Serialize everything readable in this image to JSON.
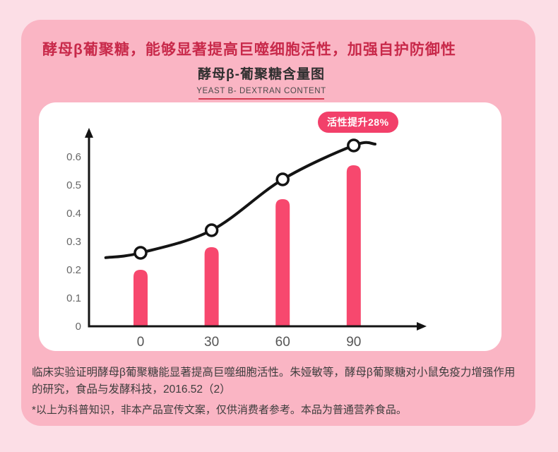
{
  "page": {
    "heading": "酵母β葡聚糖，能够显著提高巨噬细胞活性，加强自护防御性",
    "chart_title": "酵母β-葡聚糖含量图",
    "chart_subtitle": "YEAST B- DEXTRAN CONTENT",
    "footnote_line1": "临床实验证明酵母β葡聚糖能显著提高巨噬细胞活性。朱娅敏等，酵母β葡聚糖对小鼠免疫力增强作用",
    "footnote_line2": "的研究，食品与发酵科技，2016.52（2）",
    "disclaimer": "*以上为科普知识，非本产品宣传文案，仅供消费者参考。本品为普通营养食品。"
  },
  "colors": {
    "outer_background": "#fcdee6",
    "card_background": "#fab5c4",
    "panel_background": "#ffffff",
    "heading_red": "#c8294a",
    "underline_red": "#d0394f",
    "bar_pink": "#f7486e",
    "badge_pink": "#f2406a",
    "axis_black": "#141414",
    "tick_gray": "#666666"
  },
  "chart_data": {
    "type": "bar",
    "title": "酵母β-葡聚糖含量图",
    "subtitle": "YEAST B- DEXTRAN CONTENT",
    "categories": [
      "0",
      "30",
      "60",
      "90"
    ],
    "series": [
      {
        "name": "dextran-content-bars",
        "type": "bar",
        "values": [
          0.2,
          0.28,
          0.45,
          0.57
        ],
        "color": "#f7486e"
      },
      {
        "name": "activity-trend-line",
        "type": "line",
        "values": [
          0.26,
          0.34,
          0.52,
          0.64
        ],
        "color": "#141414",
        "marker": "open-circle"
      }
    ],
    "annotation": "活性提升28%",
    "xlabel": "",
    "ylabel": "",
    "yticks": [
      0,
      0.1,
      0.2,
      0.3,
      0.4,
      0.5,
      0.6
    ],
    "ylim": [
      0,
      0.68
    ],
    "grid": false,
    "legend": false
  }
}
